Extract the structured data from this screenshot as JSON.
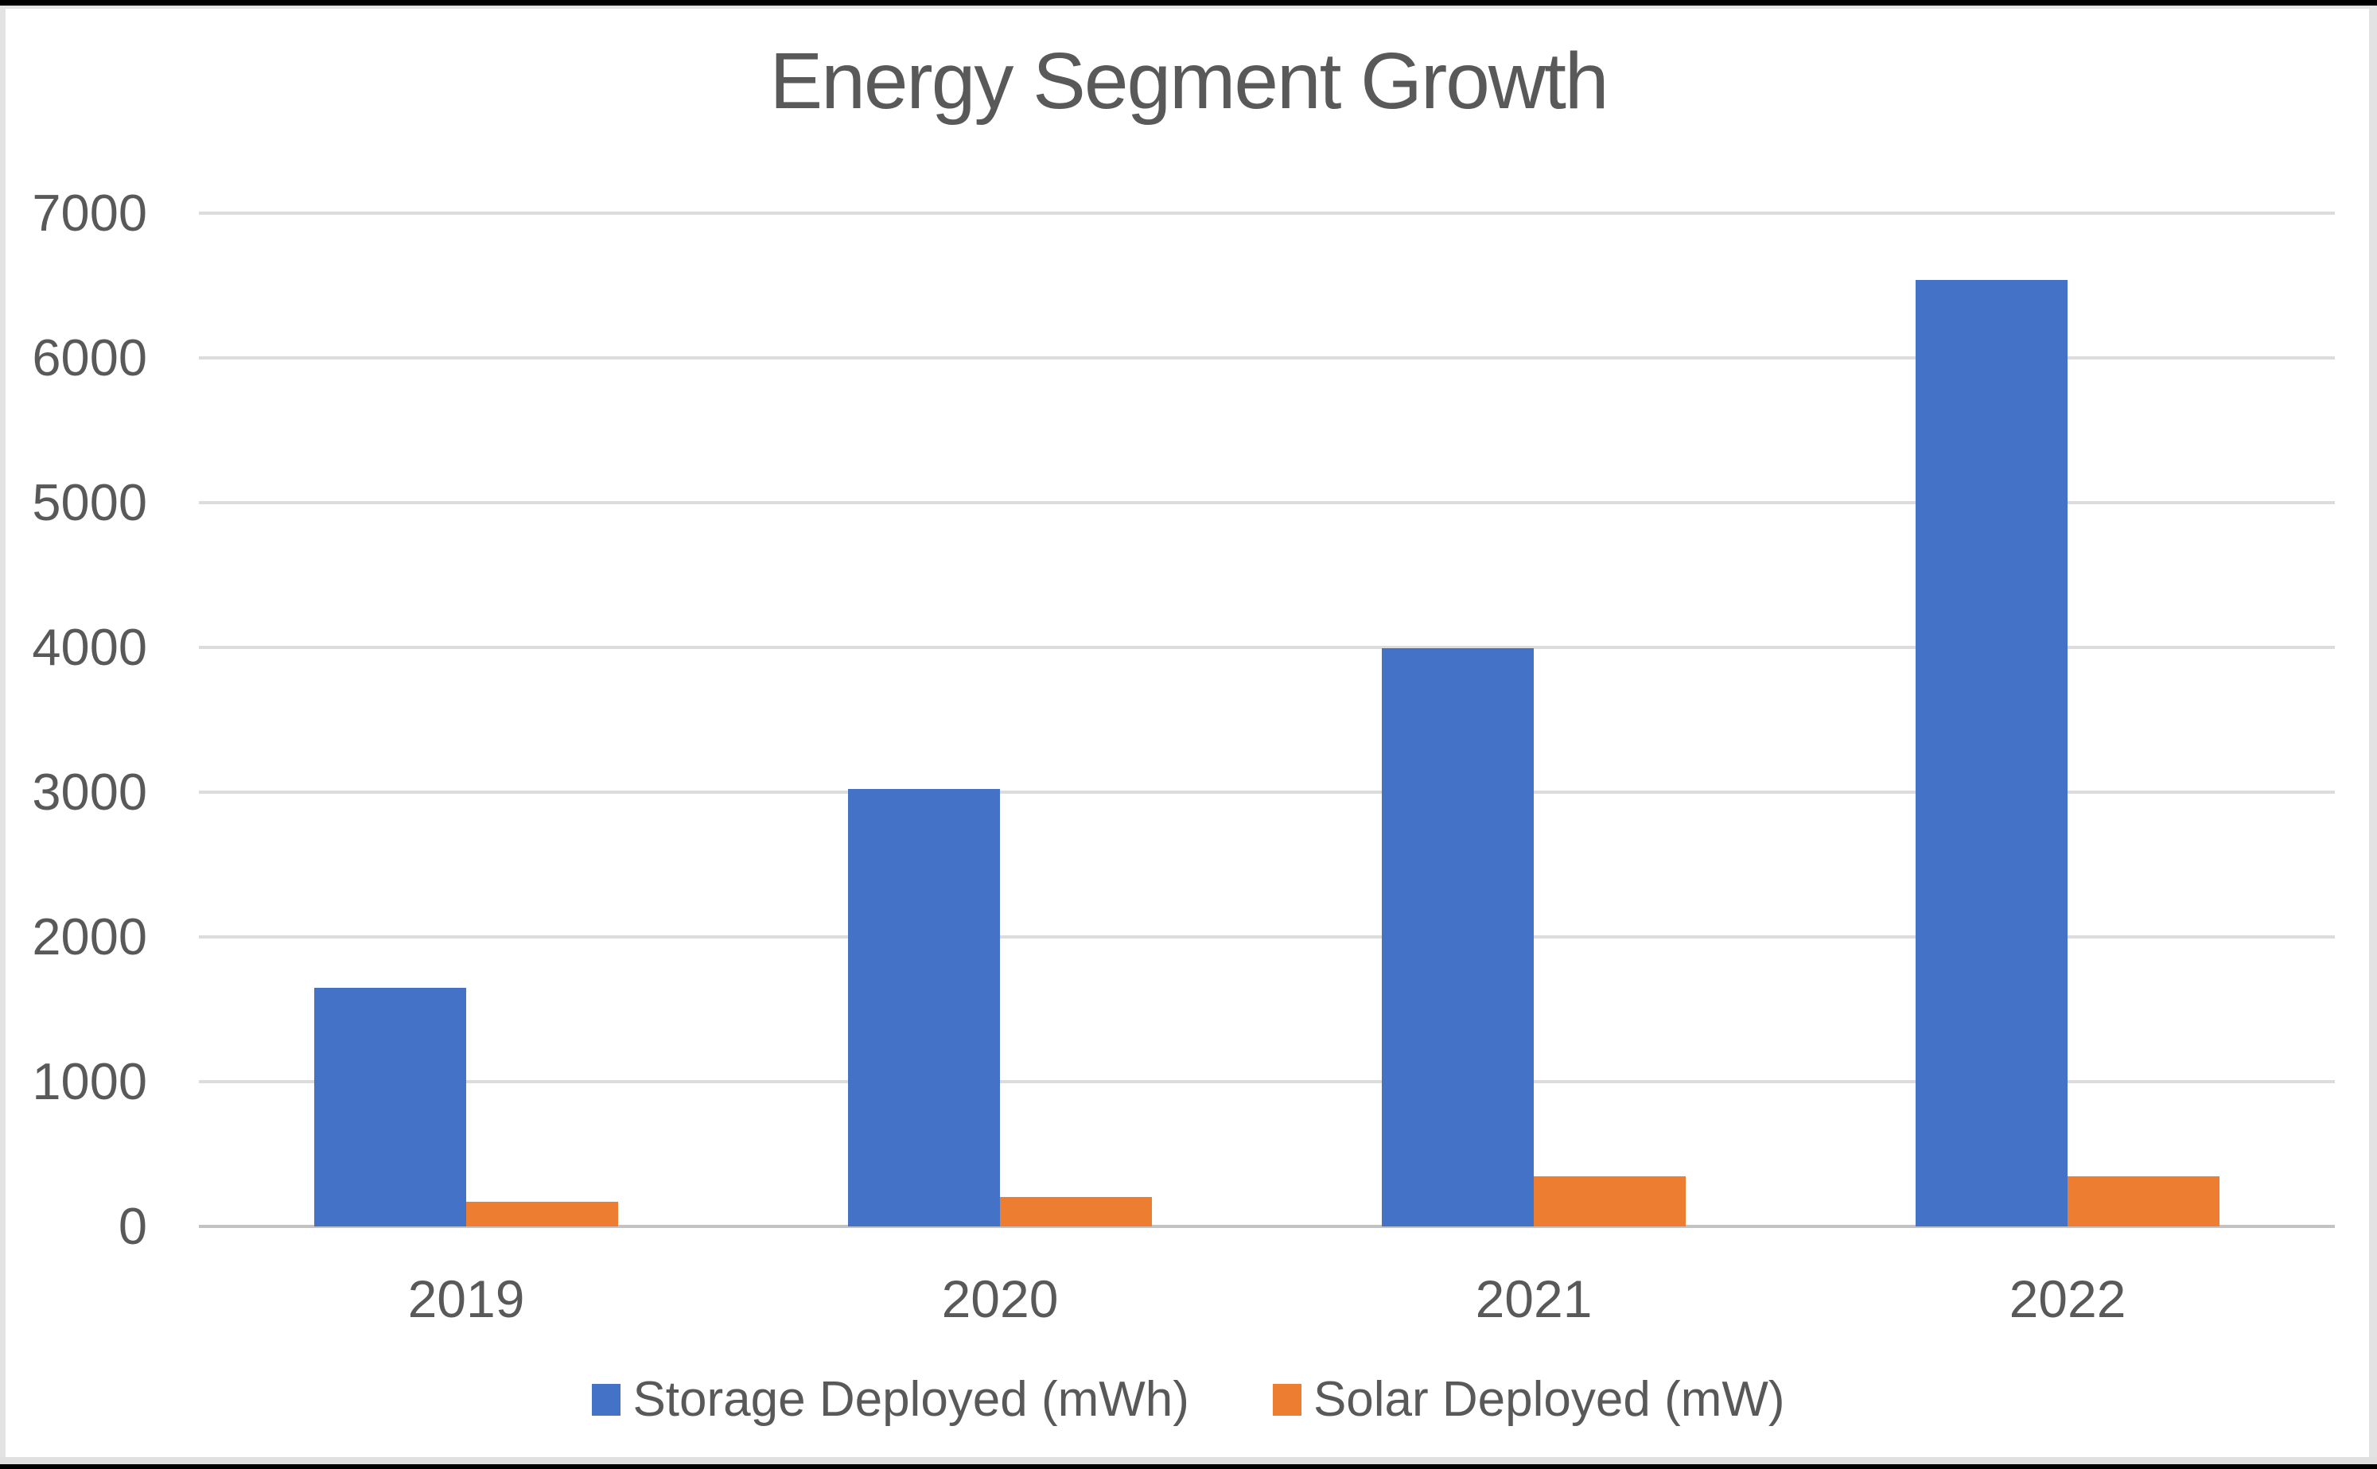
{
  "chart_data": {
    "type": "bar",
    "title": "Energy Segment Growth",
    "categories": [
      "2019",
      "2020",
      "2021",
      "2022"
    ],
    "series": [
      {
        "name": "Storage Deployed (mWh)",
        "color": "#4472C6",
        "values": [
          1651,
          3022,
          3992,
          6541
        ]
      },
      {
        "name": "Solar Deployed (mW)",
        "color": "#ED7D31",
        "values": [
          173,
          205,
          345,
          348
        ]
      }
    ],
    "ylim": [
      0,
      7000
    ],
    "ytick_step": 1000,
    "yticks": [
      "0",
      "1000",
      "2000",
      "3000",
      "4000",
      "5000",
      "6000",
      "7000"
    ],
    "xlabel": "",
    "ylabel": "",
    "grid": true,
    "legend_position": "bottom",
    "colors": {
      "text": "#595959",
      "gridline": "#dcdcdc",
      "axis_line": "#c3c3c3",
      "background": "#ffffff",
      "frame": "#000000"
    }
  }
}
